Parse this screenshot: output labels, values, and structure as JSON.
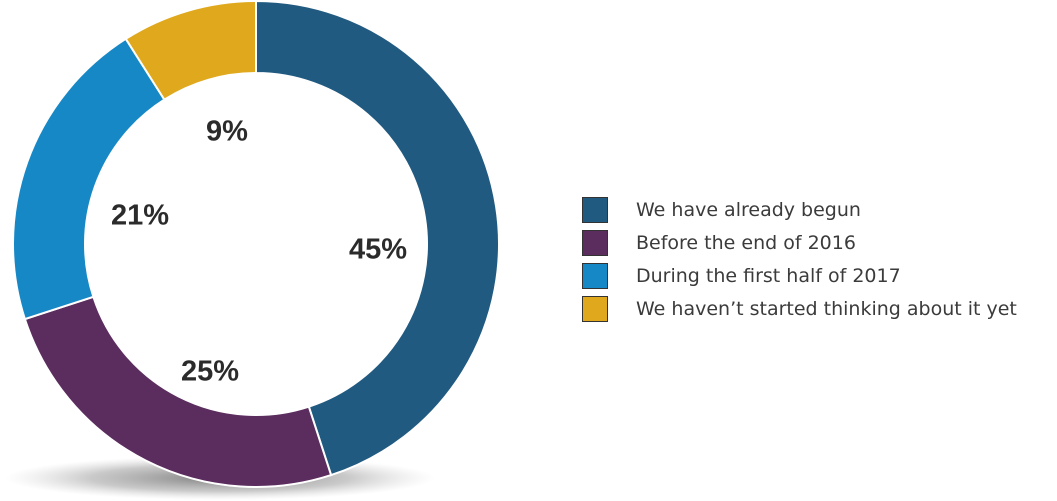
{
  "chart_data": {
    "type": "pie",
    "style": "donut",
    "categories": [
      "We have already begun",
      "Before the end of 2016",
      "During the first half of 2017",
      "We haven’t started thinking about it yet"
    ],
    "values": [
      45,
      25,
      21,
      9
    ],
    "value_labels": [
      "45%",
      "25%",
      "21%",
      "9%"
    ],
    "colors": [
      "#215a80",
      "#5b2c5e",
      "#1788c6",
      "#e0a91d"
    ],
    "legend_position": "right"
  }
}
